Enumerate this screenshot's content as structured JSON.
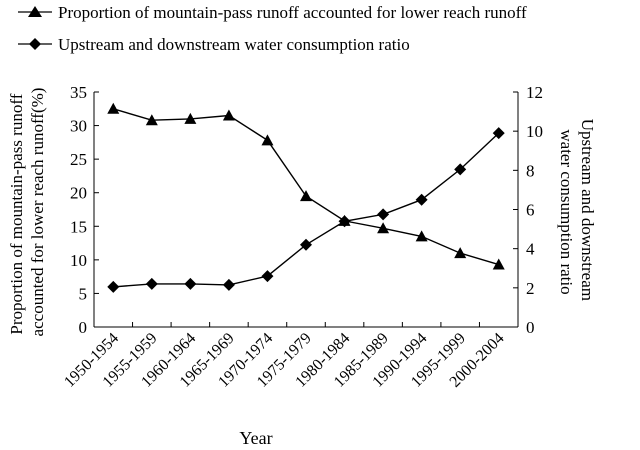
{
  "chart_data": {
    "type": "line",
    "categories": [
      "1950-1954",
      "1955-1959",
      "1960-1964",
      "1965-1969",
      "1970-1974",
      "1975-1979",
      "1980-1984",
      "1985-1989",
      "1990-1994",
      "1995-1999",
      "2000-2004"
    ],
    "xlabel": "Year",
    "ylabel_left": "Proportion of mountain-pass runoff accounted for lower reach runoff(%)",
    "ylabel_right": "Upstream and downstream water consumption ratio",
    "ylim_left": [
      0,
      35
    ],
    "ylim_right": [
      0,
      12
    ],
    "yticks_left": [
      0,
      5,
      10,
      15,
      20,
      25,
      30,
      35
    ],
    "yticks_right": [
      0,
      2,
      4,
      6,
      8,
      10,
      12
    ],
    "grid": false,
    "legend_position": "top-left",
    "series": [
      {
        "name": "Proportion of mountain-pass runoff accounted for lower reach runoff",
        "axis": "left",
        "marker": "triangle",
        "values": [
          32.5,
          30.8,
          31.0,
          31.5,
          27.8,
          19.5,
          15.8,
          14.7,
          13.5,
          11.0,
          9.3
        ]
      },
      {
        "name": "Upstream and downstream water consumption ratio",
        "axis": "right",
        "marker": "diamond",
        "values": [
          2.05,
          2.2,
          2.2,
          2.15,
          2.6,
          4.2,
          5.4,
          5.75,
          6.5,
          8.05,
          9.9
        ]
      }
    ]
  }
}
